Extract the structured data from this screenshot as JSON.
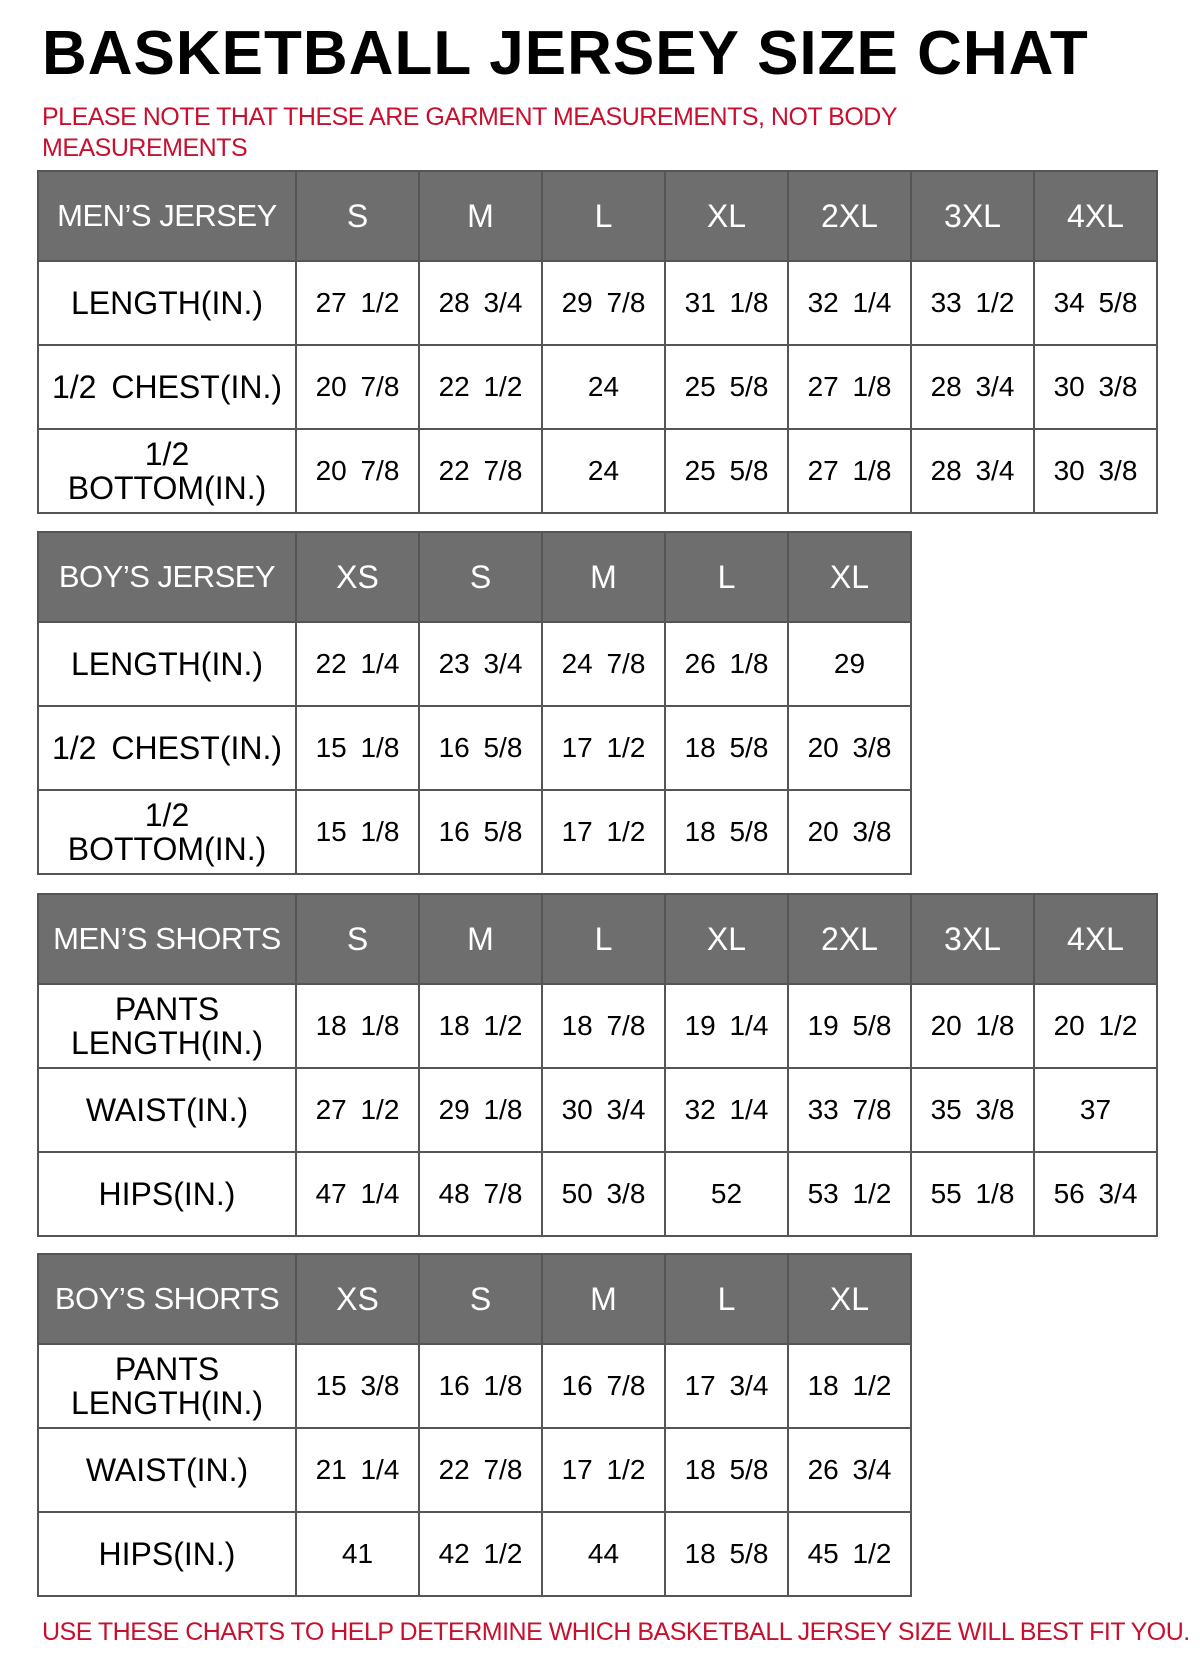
{
  "title": "BASKETBALL JERSEY SIZE CHAT",
  "note": "PLEASE NOTE THAT THESE ARE GARMENT MEASUREMENTS, NOT BODY MEASUREMENTS",
  "footer": "USE THESE CHARTS TO HELP DETERMINE WHICH BASKETBALL JERSEY SIZE WILL BEST FIT YOU.",
  "colors": {
    "header_bg": "#6e6e6e",
    "note_red": "#c8102e"
  },
  "tables": [
    {
      "name": "MEN’S JERSEY",
      "sizes": [
        "S",
        "M",
        "L",
        "XL",
        "2XL",
        "3XL",
        "4XL"
      ],
      "rows": [
        {
          "label": "LENGTH(IN.)",
          "values": [
            "27 1/2",
            "28 3/4",
            "29 7/8",
            "31 1/8",
            "32 1/4",
            "33 1/2",
            "34 5/8"
          ]
        },
        {
          "label": "1/2 CHEST(IN.)",
          "values": [
            "20 7/8",
            "22 1/2",
            "24",
            "25 5/8",
            "27 1/8",
            "28 3/4",
            "30 3/8"
          ]
        },
        {
          "label": "1/2 BOTTOM(IN.)",
          "values": [
            "20 7/8",
            "22 7/8",
            "24",
            "25 5/8",
            "27 1/8",
            "28 3/4",
            "30 3/8"
          ]
        }
      ]
    },
    {
      "name": "BOY’S JERSEY",
      "sizes": [
        "XS",
        "S",
        "M",
        "L",
        "XL"
      ],
      "rows": [
        {
          "label": "LENGTH(IN.)",
          "values": [
            "22 1/4",
            "23 3/4",
            "24 7/8",
            "26 1/8",
            "29"
          ]
        },
        {
          "label": "1/2 CHEST(IN.)",
          "values": [
            "15 1/8",
            "16 5/8",
            "17 1/2",
            "18 5/8",
            "20 3/8"
          ]
        },
        {
          "label": "1/2 BOTTOM(IN.)",
          "values": [
            "15 1/8",
            "16 5/8",
            "17 1/2",
            "18 5/8",
            "20 3/8"
          ]
        }
      ]
    },
    {
      "name": "MEN’S SHORTS",
      "sizes": [
        "S",
        "M",
        "L",
        "XL",
        "2XL",
        "3XL",
        "4XL"
      ],
      "rows": [
        {
          "label": "PANTS LENGTH(IN.)",
          "values": [
            "18 1/8",
            "18 1/2",
            "18 7/8",
            "19 1/4",
            "19 5/8",
            "20 1/8",
            "20 1/2"
          ]
        },
        {
          "label": "WAIST(IN.)",
          "values": [
            "27 1/2",
            "29 1/8",
            "30 3/4",
            "32 1/4",
            "33 7/8",
            "35 3/8",
            "37"
          ]
        },
        {
          "label": "HIPS(IN.)",
          "values": [
            "47 1/4",
            "48 7/8",
            "50 3/8",
            "52",
            "53 1/2",
            "55 1/8",
            "56 3/4"
          ]
        }
      ]
    },
    {
      "name": "BOY’S SHORTS",
      "sizes": [
        "XS",
        "S",
        "M",
        "L",
        "XL"
      ],
      "rows": [
        {
          "label": "PANTS LENGTH(IN.)",
          "values": [
            "15 3/8",
            "16 1/8",
            "16 7/8",
            "17 3/4",
            "18 1/2"
          ]
        },
        {
          "label": "WAIST(IN.)",
          "values": [
            "21 1/4",
            "22 7/8",
            "17 1/2",
            "18 5/8",
            "26 3/4"
          ]
        },
        {
          "label": "HIPS(IN.)",
          "values": [
            "41",
            "42 1/2",
            "44",
            "18 5/8",
            "45 1/2"
          ]
        }
      ]
    }
  ]
}
